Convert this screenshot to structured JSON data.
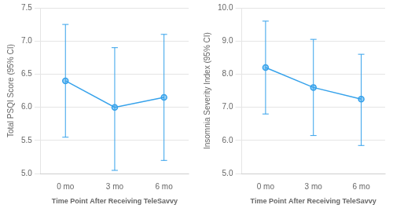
{
  "chart_data": [
    {
      "type": "line",
      "categories": [
        "0 mo",
        "3 mo",
        "6 mo"
      ],
      "values": [
        6.4,
        6.0,
        6.15
      ],
      "error_upper": [
        7.25,
        6.9,
        7.1
      ],
      "error_lower": [
        5.55,
        5.05,
        5.2
      ],
      "ylim": [
        5.0,
        7.5
      ],
      "yticks": [
        {
          "value": 5.0,
          "label": "5.0"
        },
        {
          "value": 5.5,
          "label": "5.5"
        },
        {
          "value": 6.0,
          "label": "6.0"
        },
        {
          "value": 6.5,
          "label": "6.5"
        },
        {
          "value": 7.0,
          "label": "7.0"
        },
        {
          "value": 7.5,
          "label": "7.5"
        }
      ],
      "ylabel": "Total PSQI Score (95% CI)",
      "xlabel": "Time Point After Receiving TeleSavvy",
      "grid": "y",
      "marker": "circle"
    },
    {
      "type": "line",
      "categories": [
        "0 mo",
        "3 mo",
        "6 mo"
      ],
      "values": [
        8.2,
        7.6,
        7.25
      ],
      "error_upper": [
        9.6,
        9.05,
        8.6
      ],
      "error_lower": [
        6.8,
        6.15,
        5.85
      ],
      "ylim": [
        5.0,
        10.0
      ],
      "yticks": [
        {
          "value": 5.0,
          "label": "5.0"
        },
        {
          "value": 6.0,
          "label": "6.0"
        },
        {
          "value": 7.0,
          "label": "7.0"
        },
        {
          "value": 8.0,
          "label": "8.0"
        },
        {
          "value": 9.0,
          "label": "9.0"
        },
        {
          "value": 10.0,
          "label": "10.0"
        }
      ],
      "ylabel": "Insomnia Severity Index (95% CI)",
      "xlabel": "Time Point After Receiving TeleSavvy",
      "grid": "y",
      "marker": "circle"
    }
  ]
}
